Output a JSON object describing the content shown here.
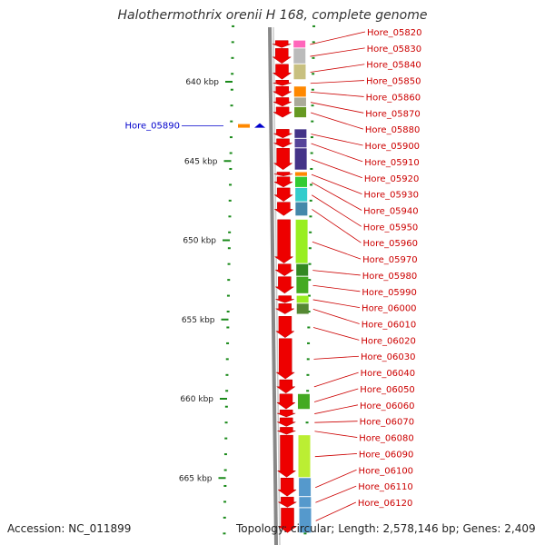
{
  "title": "Halothermothrix orenii H 168, complete genome",
  "accession": "Accession: NC_011899",
  "topology": "Topology: circular; Length: 2,578,146 bp; Genes: 2,409",
  "colors": {
    "gene_arrow": "#ee0000",
    "label": "#cc0000",
    "selected": "#0000cc",
    "tick": "#1a8a1a",
    "backbone": "#888888"
  },
  "scale": {
    "unit": "kbp",
    "ticks": [
      {
        "kbp": 640,
        "label": "640 kbp"
      },
      {
        "kbp": 645,
        "label": "645 kbp"
      },
      {
        "kbp": 650,
        "label": "650 kbp"
      },
      {
        "kbp": 655,
        "label": "655 kbp"
      },
      {
        "kbp": 660,
        "label": "660 kbp"
      },
      {
        "kbp": 665,
        "label": "665 kbp"
      }
    ]
  },
  "selected_gene": {
    "name": "Hore_05890",
    "kbp": 642.9
  },
  "genes": [
    {
      "name": "Hore_05820",
      "start": 637.4,
      "end": 637.9,
      "cog": "#ff66bb"
    },
    {
      "name": "Hore_05830",
      "start": 637.9,
      "end": 638.9,
      "cog": "#bbbbbb"
    },
    {
      "name": "Hore_05840",
      "start": 638.9,
      "end": 639.9,
      "cog": "#c8c080"
    },
    {
      "name": "Hore_05850",
      "start": 639.9,
      "end": 640.3,
      "cog": ""
    },
    {
      "name": "Hore_05860",
      "start": 640.3,
      "end": 641.0,
      "cog": "#ff8800"
    },
    {
      "name": "Hore_05870",
      "start": 641.0,
      "end": 641.6,
      "cog": "#aaaa99"
    },
    {
      "name": "Hore_05880",
      "start": 641.6,
      "end": 642.3,
      "cog": "#669922"
    },
    {
      "name": "Hore_05900",
      "start": 643.0,
      "end": 643.6,
      "cog": "#443388"
    },
    {
      "name": "Hore_05910",
      "start": 643.6,
      "end": 644.2,
      "cog": "#554499"
    },
    {
      "name": "Hore_05920",
      "start": 644.2,
      "end": 645.6,
      "cog": "#443388"
    },
    {
      "name": "Hore_05930",
      "start": 645.7,
      "end": 646.0,
      "cog": "#ff8800"
    },
    {
      "name": "Hore_05940",
      "start": 646.0,
      "end": 646.7,
      "cog": "#33cc33"
    },
    {
      "name": "Hore_05950",
      "start": 646.7,
      "end": 647.6,
      "cog": "#33cccc"
    },
    {
      "name": "Hore_05960",
      "start": 647.6,
      "end": 648.5,
      "cog": "#4488aa"
    },
    {
      "name": "Hore_05970",
      "start": 648.7,
      "end": 651.5,
      "cog": "#99ee22"
    },
    {
      "name": "Hore_05980",
      "start": 651.5,
      "end": 652.3,
      "cog": "#338822"
    },
    {
      "name": "Hore_05990",
      "start": 652.3,
      "end": 653.4,
      "cog": "#44aa22"
    },
    {
      "name": "Hore_06000",
      "start": 653.5,
      "end": 654.0,
      "cog": "#99ee22"
    },
    {
      "name": "Hore_06010",
      "start": 654.0,
      "end": 654.7,
      "cog": "#558833"
    },
    {
      "name": "Hore_06020",
      "start": 654.8,
      "end": 656.2,
      "cog": ""
    },
    {
      "name": "Hore_06030",
      "start": 656.2,
      "end": 658.8,
      "cog": ""
    },
    {
      "name": "Hore_06040",
      "start": 658.8,
      "end": 659.7,
      "cog": ""
    },
    {
      "name": "Hore_06050",
      "start": 659.7,
      "end": 660.7,
      "cog": "#44aa22"
    },
    {
      "name": "Hore_06060",
      "start": 660.7,
      "end": 661.2,
      "cog": ""
    },
    {
      "name": "Hore_06070",
      "start": 661.2,
      "end": 661.8,
      "cog": ""
    },
    {
      "name": "Hore_06080",
      "start": 661.8,
      "end": 662.3,
      "cog": ""
    },
    {
      "name": "Hore_06090",
      "start": 662.3,
      "end": 665.0,
      "cog": "#bbee33"
    },
    {
      "name": "Hore_06100",
      "start": 665.0,
      "end": 666.2,
      "cog": "#5599cc"
    },
    {
      "name": "Hore_06110",
      "start": 666.2,
      "end": 666.9,
      "cog": "#5599cc"
    },
    {
      "name": "Hore_06120",
      "start": 666.9,
      "end": 668.5,
      "cog": "#5599cc"
    }
  ]
}
